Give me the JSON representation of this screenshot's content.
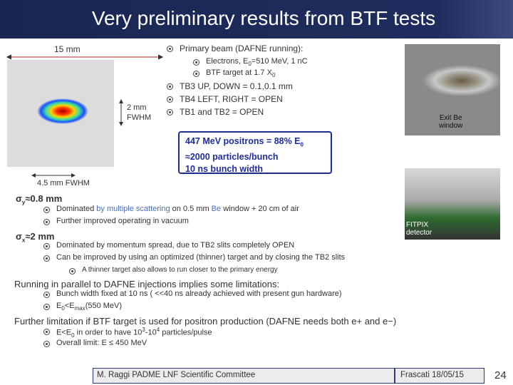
{
  "title": "Very preliminary results from BTF tests",
  "figure": {
    "scale_top": "15 mm",
    "fwhm_size": "2 mm",
    "fwhm_label": "FWHM",
    "scale_bottom": "4.5 mm FWHM"
  },
  "beam_conditions": {
    "heading": "Primary beam (DAFNE running):",
    "sub_items": [
      [
        "Electrons, E",
        "0",
        "=510 MeV, 1 nC"
      ],
      [
        "BTF target at 1.7 X",
        "0"
      ]
    ],
    "items": [
      "TB3 UP, DOWN = 0.1,0.1 mm",
      "TB4 LEFT, RIGHT = OPEN",
      "TB1 and TB2 = OPEN"
    ]
  },
  "highlight_box": {
    "lines": [
      [
        "447 MeV positrons = 88% E",
        "0"
      ],
      "≈2000 particles/bunch",
      "10 ns bunch width"
    ]
  },
  "photos": {
    "exit_label": [
      "Exit Be",
      "window"
    ],
    "fitpix_label": [
      "FITPIX",
      "detector"
    ]
  },
  "sigma_y": {
    "heading": [
      "σ",
      "y",
      "≈0.8 mm"
    ],
    "items": [
      [
        "Dominated ",
        "by multiple scattering",
        " on 0.5 mm ",
        "Be",
        " window + 20 cm of air"
      ],
      "Further improved operating in vacuum"
    ]
  },
  "sigma_x": {
    "heading": [
      "σ",
      "x",
      "≈2 mm"
    ],
    "items": [
      "Dominated by momentum spread, due to TB2 slits completely OPEN",
      "Can be improved by using an optimized (thinner) target and by closing the TB2 slits"
    ],
    "sub_items": [
      "A thinner target also allows to run closer to the primary energy"
    ]
  },
  "running": {
    "heading": "Running in parallel to DAFNE injections implies some limitations:",
    "items": [
      "Bunch width fixed at 10 ns ( <<40 ns already achieved with present gun hardware)",
      [
        "E",
        "0",
        "<E",
        "max",
        "(550 MeV)"
      ]
    ]
  },
  "further": {
    "heading": "Further limitation if BTF target is used for positron production (DAFNE needs both e+ and e−)",
    "items": [
      [
        "E<E",
        "0",
        " in order to have 10",
        "3",
        "-10",
        "4",
        " particles/pulse"
      ],
      "Overall limit: E ≤ 450 MeV"
    ]
  },
  "footer": {
    "left": "M. Raggi PADME LNF Scientific Committee",
    "right": "Frascati 18/05/15",
    "page": 24
  }
}
